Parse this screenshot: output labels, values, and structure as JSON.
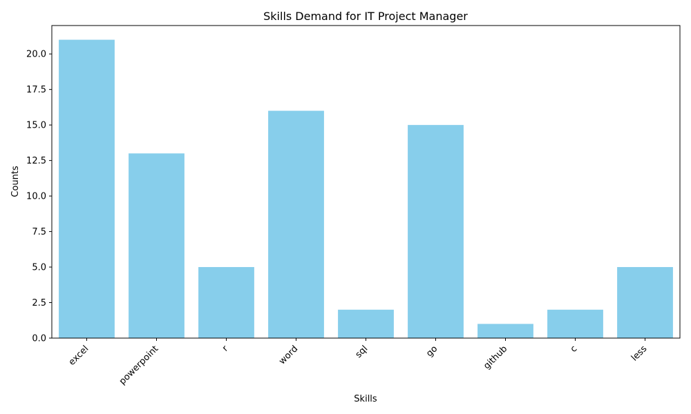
{
  "chart_data": {
    "type": "bar",
    "title": "Skills Demand for IT Project Manager",
    "xlabel": "Skills",
    "ylabel": "Counts",
    "categories": [
      "excel",
      "powerpoint",
      "r",
      "word",
      "sql",
      "go",
      "github",
      "c",
      "less"
    ],
    "values": [
      21,
      13,
      5,
      16,
      2,
      15,
      1,
      2,
      5
    ],
    "ylim": [
      0,
      22
    ],
    "yticks": [
      "0.0",
      "2.5",
      "5.0",
      "7.5",
      "10.0",
      "12.5",
      "15.0",
      "17.5",
      "20.0"
    ],
    "bar_color": "#87ceeb",
    "grid": false,
    "legend": "none"
  }
}
